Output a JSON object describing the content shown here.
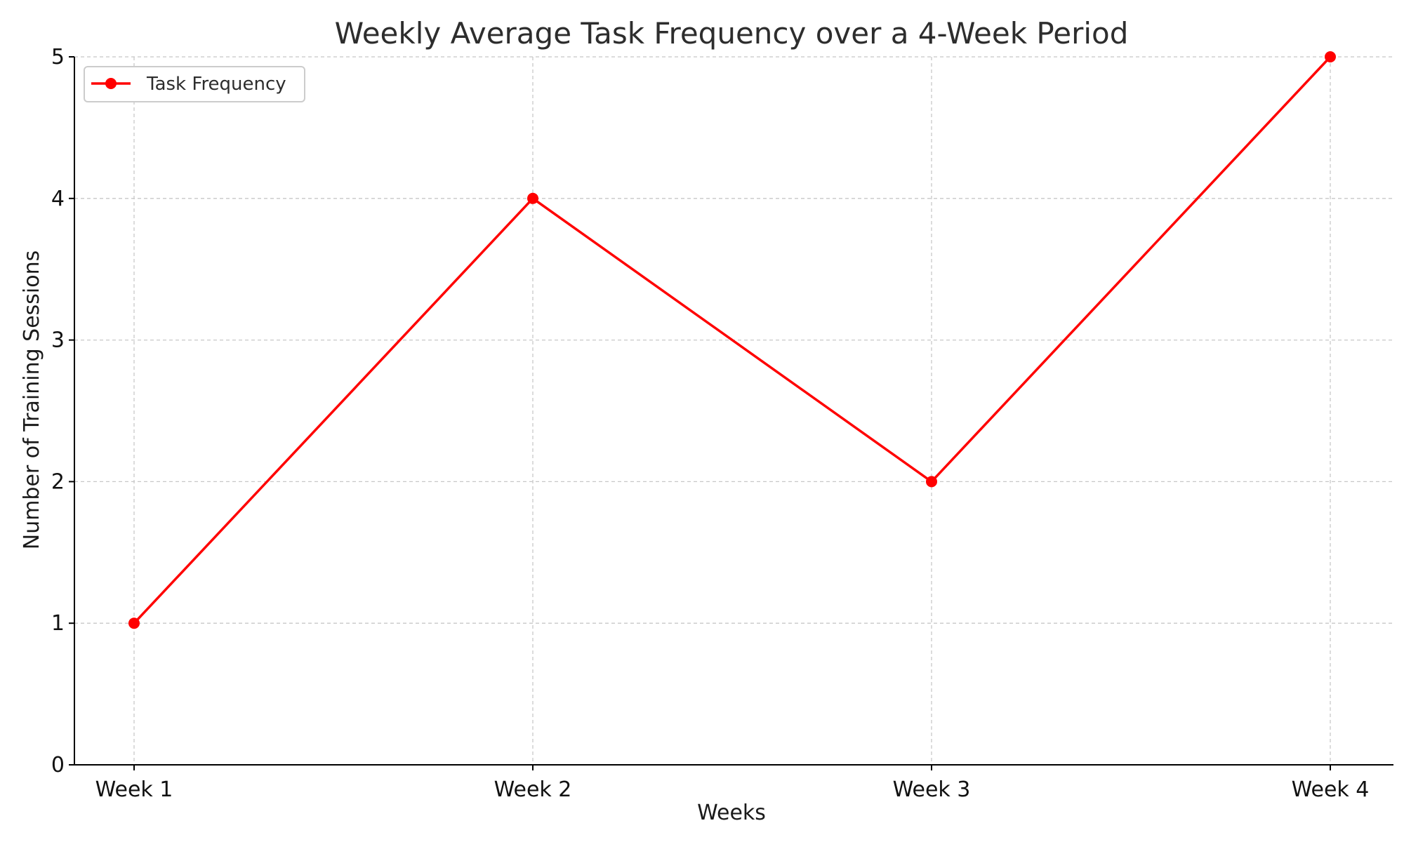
{
  "chart_data": {
    "type": "line",
    "title": "Weekly Average Task Frequency over a 4-Week Period",
    "xlabel": "Weeks",
    "ylabel": "Number of Training Sessions",
    "categories": [
      "Week 1",
      "Week 2",
      "Week 3",
      "Week 4"
    ],
    "yticks": [
      0,
      1,
      2,
      3,
      4,
      5
    ],
    "ylim": [
      0,
      5
    ],
    "grid": true,
    "legend_position": "top-left",
    "series": [
      {
        "name": "Task Frequency",
        "values": [
          1,
          4,
          2,
          5
        ],
        "color": "#ff0000",
        "marker": "circle"
      }
    ]
  }
}
